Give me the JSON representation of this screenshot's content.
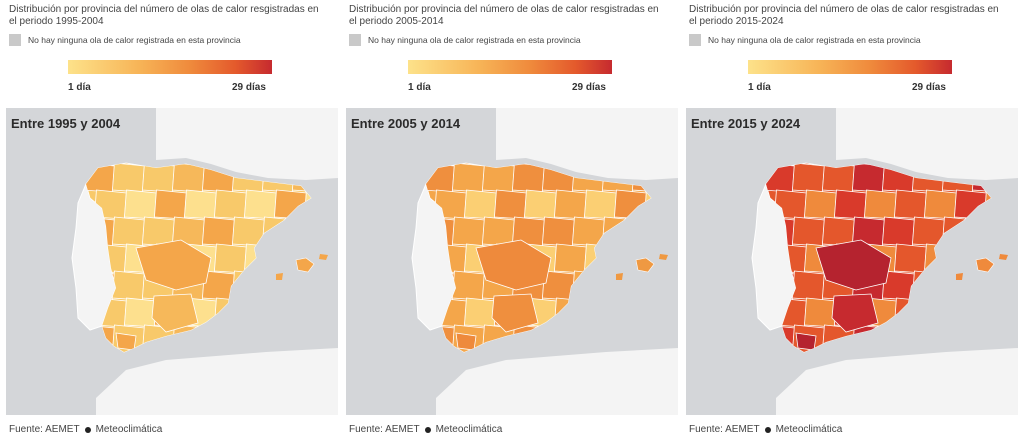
{
  "legend": {
    "nodata_color": "#c9c9c9",
    "scale_colors": [
      "#fde28a",
      "#f7b457",
      "#ef8a3c",
      "#e45a2c",
      "#c62a2f"
    ],
    "min_label": "1 día",
    "max_label": "29 días"
  },
  "source_label": "Fuente: AEMET",
  "source_partner": "Meteoclimática",
  "panels": [
    {
      "title": "Distribución por provincia del número de olas de calor resgistradas en el periodo 1995-2004",
      "nodata_text": "No hay ninguna ola de calor registrada en esta provincia",
      "map_title": "Entre 1995 y 2004",
      "fill_main": "#f8c96a",
      "fill_light": "#fde08e",
      "fill_dark": "#f4a64a",
      "fill_hot": "#f4a64a",
      "fill_hot2": "#f6b85a",
      "islands": "#f4a64a"
    },
    {
      "title": "Distribución por provincia del número de olas de calor resgistradas en el periodo 2005-2014",
      "nodata_text": "No hay ninguna ola de calor registrada en esta provincia",
      "map_title": "Entre 2005 y 2014",
      "fill_main": "#f4a64a",
      "fill_light": "#fbcf73",
      "fill_dark": "#ef8f3e",
      "fill_hot": "#ee8a3c",
      "fill_hot2": "#ef8f3e",
      "islands": "#ef9942"
    },
    {
      "title": "Distribución por provincia del número de olas de calor resgistradas en el periodo 2015-2024",
      "nodata_text": "No hay ninguna ola de calor registrada en esta provincia",
      "map_title": "Entre 2015 y 2024",
      "fill_main": "#e4572c",
      "fill_light": "#ef8a3c",
      "fill_dark": "#d93a2b",
      "fill_hot": "#b5232f",
      "fill_hot2": "#c62a2f",
      "islands": "#ef8a3c"
    }
  ]
}
